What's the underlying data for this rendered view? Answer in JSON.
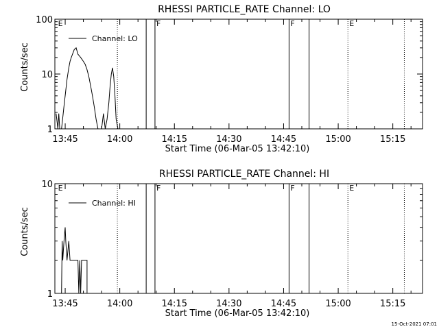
{
  "footer": {
    "timestamp": "15-Oct-2021 07:01"
  },
  "chart_data": [
    {
      "type": "line",
      "title": "RHESSI PARTICLE_RATE Channel: LO",
      "xlabel": "Start Time (06-Mar-05 13:42:10)",
      "ylabel": "Counts/sec",
      "x_unit": "time (HH:MM)",
      "xlim": [
        "13:42:10",
        "15:23:10"
      ],
      "ylim": [
        1,
        100
      ],
      "yscale": "log",
      "xticks": [
        "13:45",
        "14:00",
        "14:15",
        "14:30",
        "14:45",
        "15:00",
        "15:15"
      ],
      "yticks": [
        "1",
        "10",
        "100"
      ],
      "legend": {
        "placement": "top-left",
        "entries": [
          "Channel: LO"
        ]
      },
      "markers": [
        {
          "time": "13:42:40",
          "label": "E",
          "style": "none"
        },
        {
          "time": "13:59:20",
          "label": "",
          "style": "dotted"
        },
        {
          "time": "14:07:15",
          "label": "",
          "style": "solid"
        },
        {
          "time": "14:09:40",
          "label": "F",
          "style": "solid"
        },
        {
          "time": "14:46:30",
          "label": "F",
          "style": "solid"
        },
        {
          "time": "14:52:00",
          "label": "",
          "style": "solid"
        },
        {
          "time": "15:02:40",
          "label": "E",
          "style": "dotted"
        },
        {
          "time": "15:18:10",
          "label": "",
          "style": "dotted"
        }
      ],
      "series": [
        {
          "name": "Channel: LO",
          "x": [
            "13:42:30",
            "13:43:00",
            "13:43:15",
            "13:43:30",
            "13:44:00",
            "13:44:20",
            "13:44:40",
            "13:45:00",
            "13:45:30",
            "13:46:00",
            "13:46:20",
            "13:46:40",
            "13:47:00",
            "13:47:30",
            "13:48:00",
            "13:48:30",
            "13:49:00",
            "13:49:30",
            "13:50:00",
            "13:50:30",
            "13:51:00",
            "13:51:30",
            "13:52:00",
            "13:52:30",
            "13:53:00",
            "13:53:30",
            "13:54:00",
            "13:54:30",
            "13:55:00",
            "13:55:30",
            "13:56:00",
            "13:56:30",
            "13:57:00",
            "13:57:20",
            "13:57:40",
            "13:58:00",
            "13:58:20",
            "13:58:40",
            "13:59:00",
            "13:59:30"
          ],
          "y": [
            1.9,
            1.0,
            1.9,
            1.0,
            1.0,
            1.6,
            2.6,
            4.0,
            8.0,
            13.0,
            17.0,
            20.0,
            23.0,
            28.0,
            30.0,
            23.0,
            21.0,
            19.0,
            17.0,
            15.0,
            12.0,
            9.0,
            6.0,
            4.0,
            2.5,
            1.5,
            1.0,
            1.0,
            1.0,
            1.9,
            1.0,
            1.5,
            3.0,
            6.0,
            10.0,
            13.0,
            9.0,
            4.0,
            1.5,
            1.0
          ]
        }
      ]
    },
    {
      "type": "line",
      "title": "RHESSI PARTICLE_RATE Channel: HI",
      "xlabel": "Start Time (06-Mar-05 13:42:10)",
      "ylabel": "Counts/sec",
      "x_unit": "time (HH:MM)",
      "xlim": [
        "13:42:10",
        "15:23:10"
      ],
      "ylim": [
        1,
        10
      ],
      "yscale": "log",
      "xticks": [
        "13:45",
        "14:00",
        "14:15",
        "14:30",
        "14:45",
        "15:00",
        "15:15"
      ],
      "yticks": [
        "1",
        "10"
      ],
      "legend": {
        "placement": "top-left",
        "entries": [
          "Channel: HI"
        ]
      },
      "markers": [
        {
          "time": "13:42:40",
          "label": "E",
          "style": "none"
        },
        {
          "time": "13:59:20",
          "label": "",
          "style": "dotted"
        },
        {
          "time": "14:07:15",
          "label": "",
          "style": "solid"
        },
        {
          "time": "14:09:40",
          "label": "F",
          "style": "solid"
        },
        {
          "time": "14:46:30",
          "label": "F",
          "style": "solid"
        },
        {
          "time": "14:52:00",
          "label": "",
          "style": "solid"
        },
        {
          "time": "15:02:40",
          "label": "E",
          "style": "dotted"
        },
        {
          "time": "15:18:10",
          "label": "",
          "style": "dotted"
        }
      ],
      "series": [
        {
          "name": "Channel: HI",
          "x": [
            "13:44:00",
            "13:44:10",
            "13:44:20",
            "13:44:40",
            "13:45:00",
            "13:45:10",
            "13:45:30",
            "13:46:00",
            "13:46:20",
            "13:46:40",
            "13:47:00",
            "13:47:30",
            "13:48:00",
            "13:48:30",
            "13:48:45",
            "13:49:00",
            "13:49:15",
            "13:49:30",
            "13:49:45",
            "13:50:00",
            "13:50:30",
            "13:51:00",
            "13:51:00"
          ],
          "y": [
            1.0,
            3.0,
            2.0,
            3.0,
            4.0,
            3.0,
            2.0,
            3.0,
            2.0,
            2.0,
            2.0,
            2.0,
            2.0,
            2.0,
            1.0,
            2.0,
            1.0,
            2.0,
            2.0,
            2.0,
            2.0,
            2.0,
            1.0
          ]
        }
      ]
    }
  ]
}
